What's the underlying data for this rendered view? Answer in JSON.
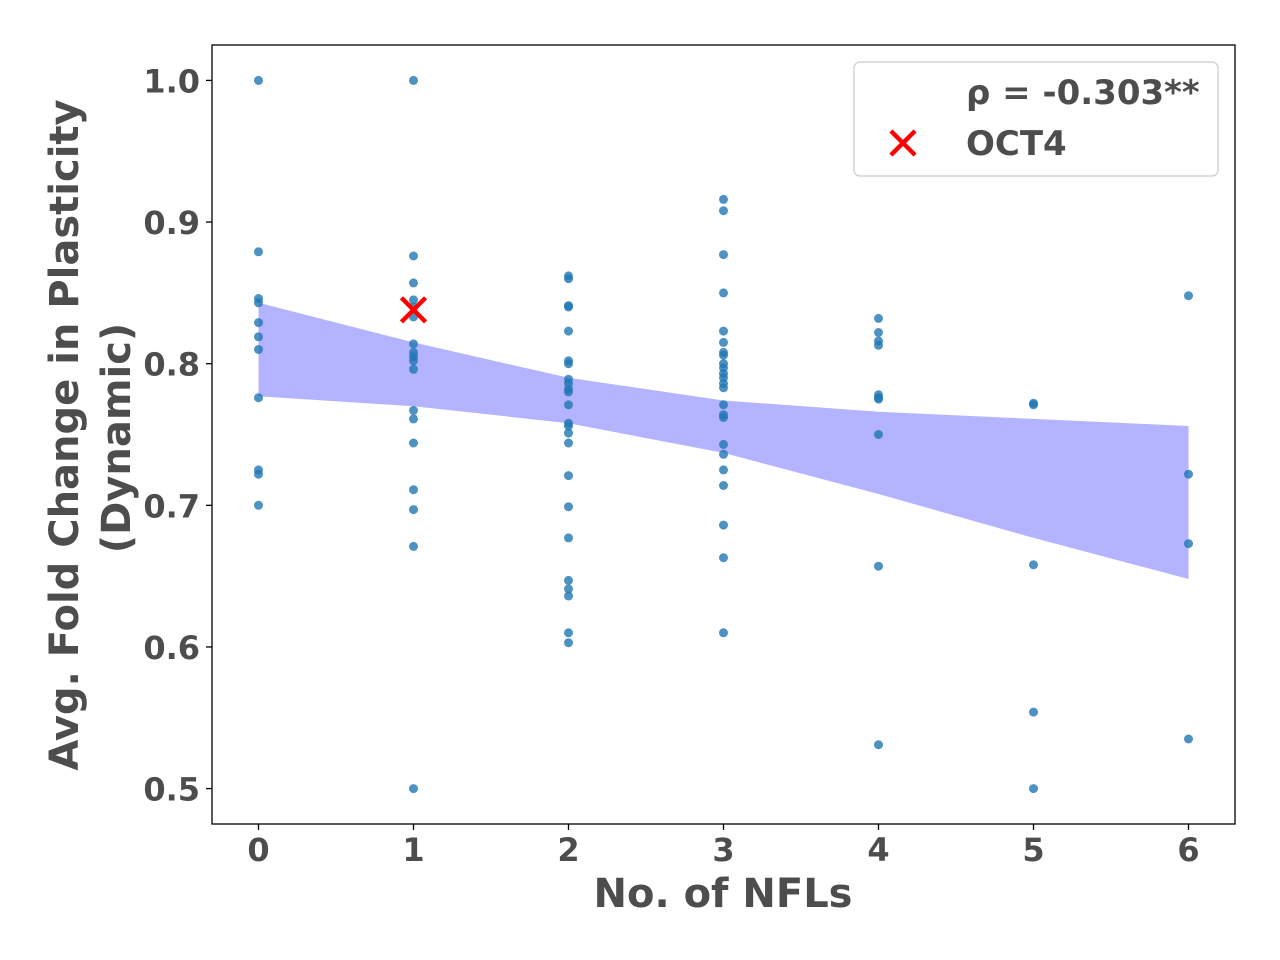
{
  "chart_data": {
    "type": "scatter",
    "xlabel": "No. of NFLs",
    "ylabel_line1": "Avg. Fold Change in Plasticity",
    "ylabel_line2": "(Dynamic)",
    "xlim": [
      -0.3,
      6.3
    ],
    "ylim": [
      0.475,
      1.025
    ],
    "x_ticks": [
      0,
      1,
      2,
      3,
      4,
      5,
      6
    ],
    "y_ticks": [
      "0.5",
      "0.6",
      "0.7",
      "0.8",
      "0.9",
      "1.0"
    ],
    "grid": false,
    "legend_position": "top-right",
    "legend": {
      "stat_label": "ρ = -0.303**",
      "marker_label": "OCT4"
    },
    "colors": {
      "points": "#1f77b4",
      "band": "#8080ff",
      "highlight": "#ff0000",
      "text": "#4d4d4d"
    },
    "series": [
      {
        "points": [
          [
            0,
            1.0
          ],
          [
            0,
            0.879
          ],
          [
            0,
            0.846
          ],
          [
            0,
            0.843
          ],
          [
            0,
            0.829
          ],
          [
            0,
            0.819
          ],
          [
            0,
            0.81
          ],
          [
            0,
            0.776
          ],
          [
            0,
            0.725
          ],
          [
            0,
            0.722
          ],
          [
            0,
            0.7
          ],
          [
            1,
            1.0
          ],
          [
            1,
            0.876
          ],
          [
            1,
            0.857
          ],
          [
            1,
            0.845
          ],
          [
            1,
            0.84
          ],
          [
            1,
            0.833
          ],
          [
            1,
            0.814
          ],
          [
            1,
            0.808
          ],
          [
            1,
            0.805
          ],
          [
            1,
            0.802
          ],
          [
            1,
            0.796
          ],
          [
            1,
            0.767
          ],
          [
            1,
            0.761
          ],
          [
            1,
            0.744
          ],
          [
            1,
            0.711
          ],
          [
            1,
            0.697
          ],
          [
            1,
            0.671
          ],
          [
            1,
            0.5
          ],
          [
            2,
            0.862
          ],
          [
            2,
            0.86
          ],
          [
            2,
            0.841
          ],
          [
            2,
            0.84
          ],
          [
            2,
            0.823
          ],
          [
            2,
            0.802
          ],
          [
            2,
            0.8
          ],
          [
            2,
            0.789
          ],
          [
            2,
            0.786
          ],
          [
            2,
            0.782
          ],
          [
            2,
            0.78
          ],
          [
            2,
            0.771
          ],
          [
            2,
            0.758
          ],
          [
            2,
            0.756
          ],
          [
            2,
            0.751
          ],
          [
            2,
            0.744
          ],
          [
            2,
            0.721
          ],
          [
            2,
            0.699
          ],
          [
            2,
            0.677
          ],
          [
            2,
            0.647
          ],
          [
            2,
            0.641
          ],
          [
            2,
            0.636
          ],
          [
            2,
            0.61
          ],
          [
            2,
            0.603
          ],
          [
            3,
            0.916
          ],
          [
            3,
            0.908
          ],
          [
            3,
            0.877
          ],
          [
            3,
            0.85
          ],
          [
            3,
            0.823
          ],
          [
            3,
            0.815
          ],
          [
            3,
            0.808
          ],
          [
            3,
            0.806
          ],
          [
            3,
            0.8
          ],
          [
            3,
            0.797
          ],
          [
            3,
            0.793
          ],
          [
            3,
            0.79
          ],
          [
            3,
            0.786
          ],
          [
            3,
            0.783
          ],
          [
            3,
            0.771
          ],
          [
            3,
            0.764
          ],
          [
            3,
            0.762
          ],
          [
            3,
            0.743
          ],
          [
            3,
            0.736
          ],
          [
            3,
            0.725
          ],
          [
            3,
            0.714
          ],
          [
            3,
            0.686
          ],
          [
            3,
            0.663
          ],
          [
            3,
            0.61
          ],
          [
            4,
            0.832
          ],
          [
            4,
            0.822
          ],
          [
            4,
            0.816
          ],
          [
            4,
            0.813
          ],
          [
            4,
            0.778
          ],
          [
            4,
            0.776
          ],
          [
            4,
            0.775
          ],
          [
            4,
            0.75
          ],
          [
            4,
            0.657
          ],
          [
            4,
            0.531
          ],
          [
            5,
            0.772
          ],
          [
            5,
            0.771
          ],
          [
            5,
            0.658
          ],
          [
            5,
            0.554
          ],
          [
            5,
            0.5
          ],
          [
            6,
            0.848
          ],
          [
            6,
            0.722
          ],
          [
            6,
            0.673
          ],
          [
            6,
            0.535
          ]
        ]
      }
    ],
    "confidence_band": {
      "x": [
        0,
        1,
        2,
        3,
        4,
        5,
        6
      ],
      "upper": [
        0.843,
        0.815,
        0.79,
        0.774,
        0.766,
        0.761,
        0.756
      ],
      "lower": [
        0.777,
        0.77,
        0.758,
        0.737,
        0.708,
        0.677,
        0.648
      ]
    },
    "highlight": {
      "x": 1,
      "y": 0.838,
      "label": "OCT4"
    }
  }
}
